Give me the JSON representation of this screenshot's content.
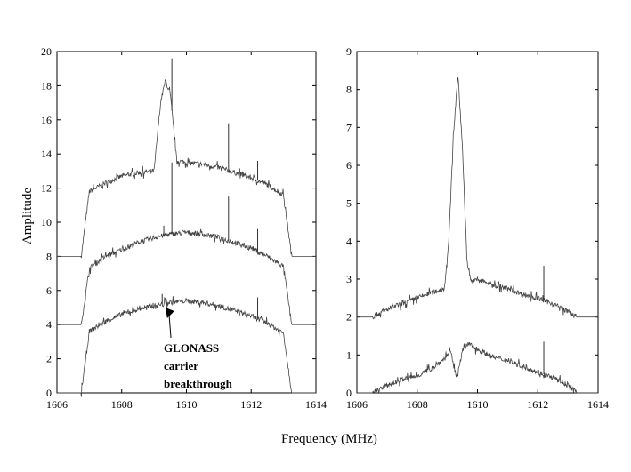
{
  "chart_data": [
    {
      "type": "line",
      "xlabel": "Frequency (MHz)",
      "ylabel": "Amplitude",
      "xlim": [
        1606,
        1614
      ],
      "ylim": [
        0,
        20
      ],
      "xticks": [
        1606,
        1608,
        1610,
        1612,
        1614
      ],
      "yticks": [
        0,
        2,
        4,
        6,
        8,
        10,
        12,
        14,
        16,
        18,
        20
      ],
      "grid": false,
      "series": [
        {
          "baseline": 8,
          "x": [
            1606.0,
            1606.75,
            1607.0,
            1607.5,
            1608.0,
            1608.5,
            1609.0,
            1609.2,
            1609.35,
            1609.5,
            1609.7,
            1610.0,
            1610.5,
            1611.0,
            1611.5,
            1612.0,
            1612.5,
            1613.0,
            1613.25,
            1613.5,
            1614.0
          ],
          "y": [
            8.0,
            8.0,
            11.8,
            12.3,
            12.7,
            12.9,
            13.0,
            17.0,
            18.3,
            17.5,
            13.6,
            13.5,
            13.4,
            13.2,
            12.9,
            12.6,
            12.2,
            11.6,
            8.0,
            8.0,
            8.0
          ],
          "spikes": [
            [
              1609.55,
              19.6
            ],
            [
              1611.3,
              15.8
            ],
            [
              1612.2,
              13.6
            ]
          ]
        },
        {
          "baseline": 4,
          "x": [
            1606.0,
            1606.75,
            1607.0,
            1607.5,
            1608.0,
            1608.5,
            1609.0,
            1609.5,
            1610.0,
            1610.5,
            1611.0,
            1611.5,
            1612.0,
            1612.5,
            1613.0,
            1613.25,
            1613.5,
            1614.0
          ],
          "y": [
            4.0,
            4.0,
            7.3,
            8.0,
            8.4,
            8.8,
            9.1,
            9.3,
            9.4,
            9.3,
            9.1,
            8.8,
            8.5,
            8.0,
            7.4,
            4.0,
            4.0,
            4.0
          ],
          "spikes": [
            [
              1609.55,
              13.5
            ],
            [
              1609.3,
              9.8
            ],
            [
              1611.3,
              11.5
            ],
            [
              1612.2,
              9.6
            ]
          ]
        },
        {
          "baseline": 0,
          "x": [
            1606.0,
            1606.75,
            1607.0,
            1607.5,
            1608.0,
            1608.5,
            1609.0,
            1609.5,
            1610.0,
            1610.5,
            1611.0,
            1611.5,
            1612.0,
            1612.5,
            1613.0,
            1613.25,
            1613.5,
            1614.0
          ],
          "y": [
            0.0,
            0.0,
            3.6,
            4.2,
            4.6,
            4.9,
            5.1,
            5.3,
            5.4,
            5.3,
            5.1,
            4.8,
            4.5,
            4.1,
            3.5,
            0.0,
            0.0,
            0.0
          ],
          "spikes": [
            [
              1609.25,
              5.8
            ],
            [
              1612.2,
              5.6
            ]
          ]
        }
      ],
      "annotation": {
        "lines": [
          "GLONASS",
          "carrier",
          "breakthrough"
        ],
        "arrow_to": [
          1609.35,
          5.0
        ],
        "text_at": [
          1609.3,
          2.4
        ]
      }
    },
    {
      "type": "line",
      "xlim": [
        1606,
        1614
      ],
      "ylim": [
        0,
        9
      ],
      "xticks": [
        1606,
        1608,
        1610,
        1612,
        1614
      ],
      "yticks": [
        0,
        1,
        2,
        3,
        4,
        5,
        6,
        7,
        8,
        9
      ],
      "grid": false,
      "series": [
        {
          "baseline": 2,
          "x": [
            1606.0,
            1606.5,
            1607.0,
            1607.5,
            1608.0,
            1608.5,
            1608.9,
            1609.05,
            1609.2,
            1609.35,
            1609.5,
            1609.65,
            1609.8,
            1610.0,
            1610.5,
            1611.0,
            1611.5,
            1612.0,
            1612.5,
            1613.0,
            1613.3,
            1614.0
          ],
          "y": [
            2.0,
            2.0,
            2.2,
            2.35,
            2.5,
            2.65,
            2.75,
            4.0,
            6.8,
            8.4,
            6.5,
            3.5,
            2.9,
            3.0,
            2.85,
            2.75,
            2.6,
            2.5,
            2.35,
            2.15,
            2.0,
            2.0
          ],
          "spikes": [
            [
              1612.2,
              3.35
            ]
          ]
        },
        {
          "baseline": 0,
          "x": [
            1606.0,
            1606.5,
            1607.0,
            1607.5,
            1608.0,
            1608.5,
            1608.9,
            1609.1,
            1609.3,
            1609.5,
            1609.7,
            1610.0,
            1610.5,
            1611.0,
            1611.5,
            1612.0,
            1612.5,
            1613.0,
            1613.3,
            1614.0
          ],
          "y": [
            0.0,
            0.0,
            0.2,
            0.35,
            0.45,
            0.65,
            0.9,
            1.1,
            0.4,
            1.1,
            1.3,
            1.15,
            0.95,
            0.85,
            0.7,
            0.55,
            0.4,
            0.2,
            0.0,
            0.0
          ],
          "spikes": [
            [
              1612.2,
              1.35
            ]
          ]
        }
      ]
    }
  ]
}
